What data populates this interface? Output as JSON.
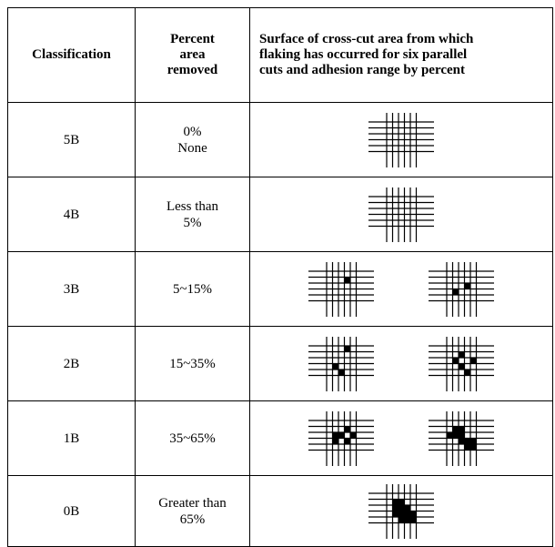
{
  "headers": {
    "classification": "Classification",
    "percent_line1": "Percent",
    "percent_line2": "area",
    "percent_line3": "removed",
    "surface_line1": "Surface of cross-cut area from which",
    "surface_line2": "flaking has occurred for six parallel",
    "surface_line3": "cuts and adhesion range by percent"
  },
  "rows": [
    {
      "classification": "5B",
      "percent_line1": "0%",
      "percent_line2": "None",
      "pattern_count": 1,
      "flaking": "none"
    },
    {
      "classification": "4B",
      "percent_line1": "Less than",
      "percent_line2": "5%",
      "pattern_count": 1,
      "flaking": "minimal"
    },
    {
      "classification": "3B",
      "percent_line1": "5~15%",
      "percent_line2": "",
      "pattern_count": 2,
      "flaking": "light"
    },
    {
      "classification": "2B",
      "percent_line1": "15~35%",
      "percent_line2": "",
      "pattern_count": 2,
      "flaking": "moderate"
    },
    {
      "classification": "1B",
      "percent_line1": "35~65%",
      "percent_line2": "",
      "pattern_count": 2,
      "flaking": "heavy"
    },
    {
      "classification": "0B",
      "percent_line1": "Greater than",
      "percent_line2": "65%",
      "pattern_count": 1,
      "flaking": "severe"
    }
  ]
}
